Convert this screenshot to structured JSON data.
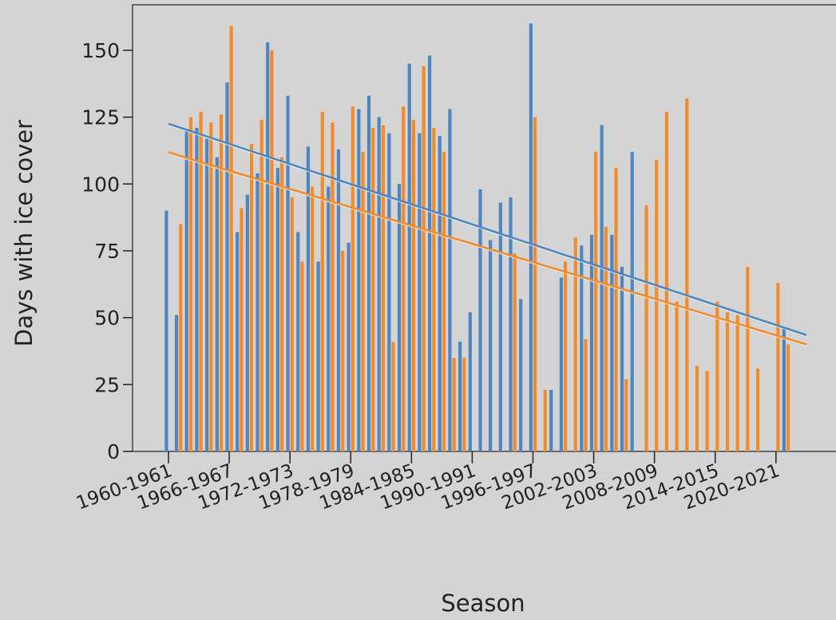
{
  "chart_data": {
    "type": "bar",
    "xlabel": "Season",
    "ylabel": "Days with ice cover",
    "ylim": [
      0,
      167
    ],
    "yticks": [
      0,
      25,
      50,
      75,
      100,
      125,
      150
    ],
    "grid": false,
    "legend": "none",
    "x_tick_labels": [
      "1960-1961",
      "1966-1967",
      "1972-1973",
      "1978-1979",
      "1984-1985",
      "1990-1991",
      "1996-1997",
      "2002-2003",
      "2008-2009",
      "2014-2015",
      "2020-2021"
    ],
    "categories": [
      "1960-1961",
      "1961-1962",
      "1962-1963",
      "1963-1964",
      "1964-1965",
      "1965-1966",
      "1966-1967",
      "1967-1968",
      "1968-1969",
      "1969-1970",
      "1970-1971",
      "1971-1972",
      "1972-1973",
      "1973-1974",
      "1974-1975",
      "1975-1976",
      "1976-1977",
      "1977-1978",
      "1978-1979",
      "1979-1980",
      "1980-1981",
      "1981-1982",
      "1982-1983",
      "1983-1984",
      "1984-1985",
      "1985-1986",
      "1986-1987",
      "1987-1988",
      "1988-1989",
      "1989-1990",
      "1990-1991",
      "1991-1992",
      "1992-1993",
      "1993-1994",
      "1994-1995",
      "1995-1996",
      "1996-1997",
      "1997-1998",
      "1998-1999",
      "1999-2000",
      "2000-2001",
      "2001-2002",
      "2002-2003",
      "2003-2004",
      "2004-2005",
      "2005-2006",
      "2006-2007",
      "2007-2008",
      "2008-2009",
      "2009-2010",
      "2010-2011",
      "2011-2012",
      "2012-2013",
      "2013-2014",
      "2014-2015",
      "2015-2016",
      "2016-2017",
      "2017-2018",
      "2018-2019",
      "2019-2020",
      "2020-2021",
      "2021-2022",
      "2022-2023",
      "2023-2024"
    ],
    "colors": {
      "series1": "#4f86c0",
      "series2": "#f08c2e",
      "background": "#d4d4d4"
    },
    "series": [
      {
        "values": [
          90,
          51,
          120,
          121,
          117,
          110,
          138,
          82,
          96,
          104,
          153,
          106,
          133,
          82,
          114,
          71,
          99,
          113,
          78,
          128,
          133,
          125,
          119,
          100,
          145,
          119,
          148,
          118,
          128,
          41,
          52,
          98,
          79,
          93,
          95,
          57,
          160,
          0,
          23,
          65,
          0,
          77,
          81,
          122,
          81,
          69,
          112,
          0,
          0,
          0,
          0,
          0,
          0,
          0,
          0,
          0,
          0,
          0,
          0,
          0,
          0,
          46,
          0,
          0
        ]
      },
      {
        "values": [
          0,
          85,
          125,
          127,
          123,
          126,
          159,
          91,
          115,
          124,
          150,
          110,
          95,
          71,
          99,
          127,
          123,
          75,
          129,
          112,
          121,
          122,
          41,
          129,
          124,
          144,
          121,
          112,
          35,
          35,
          0,
          0,
          0,
          0,
          74,
          0,
          125,
          23,
          0,
          71,
          80,
          42,
          112,
          84,
          106,
          27,
          0,
          92,
          109,
          127,
          56,
          132,
          32,
          30,
          56,
          52,
          51,
          69,
          31,
          0,
          63,
          40,
          0,
          0
        ]
      }
    ],
    "trendlines": [
      {
        "series": 0,
        "start": [
          "1960-1961",
          122.5
        ],
        "end": [
          "2023-2024",
          43.5
        ]
      },
      {
        "series": 1,
        "start": [
          "1960-1961",
          111.8
        ],
        "end": [
          "2023-2024",
          40.0
        ]
      }
    ]
  }
}
